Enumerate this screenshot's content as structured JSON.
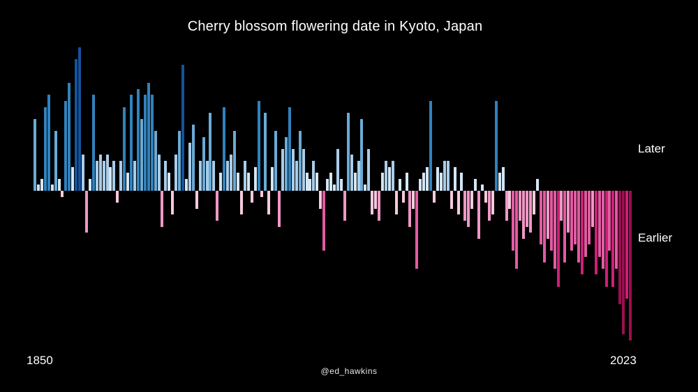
{
  "chart_data": {
    "type": "bar",
    "title": "Cherry blossom flowering date in Kyoto, Japan",
    "xlabel": "",
    "ylabel": "",
    "unit": "days relative to long-term average (positive = later, negative = earlier), estimated from bar heights",
    "x_start_label": "1850",
    "x_end_label": "2023",
    "annotations": {
      "later": "Later",
      "earlier": "Earlier"
    },
    "credit": "@ed_hawkins",
    "background": "#000000",
    "legend": "off",
    "grid": "off",
    "ylim": [
      -26,
      26
    ],
    "palette": {
      "later": [
        "#d4e6f4",
        "#a9cde9",
        "#6aabd6",
        "#3182bd",
        "#15539b"
      ],
      "earlier": [
        "#f6c9de",
        "#ef97c5",
        "#e25ba2",
        "#cf1f78",
        "#9c0e50"
      ]
    },
    "thresholds": [
      4,
      8,
      13,
      18
    ],
    "years": [
      1850,
      1851,
      1852,
      1853,
      1854,
      1855,
      1856,
      1857,
      1858,
      1859,
      1860,
      1861,
      1862,
      1863,
      1864,
      1865,
      1866,
      1867,
      1868,
      1869,
      1870,
      1871,
      1872,
      1873,
      1874,
      1875,
      1876,
      1877,
      1878,
      1879,
      1880,
      1881,
      1882,
      1883,
      1884,
      1885,
      1886,
      1887,
      1888,
      1889,
      1890,
      1891,
      1892,
      1893,
      1894,
      1895,
      1896,
      1897,
      1898,
      1899,
      1900,
      1901,
      1902,
      1903,
      1904,
      1905,
      1906,
      1907,
      1908,
      1909,
      1910,
      1911,
      1912,
      1913,
      1914,
      1915,
      1916,
      1917,
      1918,
      1919,
      1920,
      1921,
      1922,
      1923,
      1924,
      1925,
      1926,
      1927,
      1928,
      1929,
      1930,
      1931,
      1932,
      1933,
      1934,
      1935,
      1936,
      1937,
      1938,
      1939,
      1940,
      1941,
      1942,
      1943,
      1944,
      1945,
      1946,
      1947,
      1948,
      1949,
      1950,
      1951,
      1952,
      1953,
      1954,
      1955,
      1956,
      1957,
      1958,
      1959,
      1960,
      1961,
      1962,
      1963,
      1964,
      1965,
      1966,
      1967,
      1968,
      1969,
      1970,
      1971,
      1972,
      1973,
      1974,
      1975,
      1976,
      1977,
      1978,
      1979,
      1980,
      1981,
      1982,
      1983,
      1984,
      1985,
      1986,
      1987,
      1988,
      1989,
      1990,
      1991,
      1992,
      1993,
      1994,
      1995,
      1996,
      1997,
      1998,
      1999,
      2000,
      2001,
      2002,
      2003,
      2004,
      2005,
      2006,
      2007,
      2008,
      2009,
      2010,
      2011,
      2012,
      2013,
      2014,
      2015,
      2016,
      2017,
      2018,
      2019,
      2020,
      2021,
      2022,
      2023
    ],
    "values": [
      12,
      1,
      2,
      14,
      16,
      1,
      10,
      2,
      -1,
      15,
      18,
      4,
      22,
      24,
      6,
      -7,
      2,
      16,
      5,
      6,
      5,
      6,
      4,
      5,
      -2,
      5,
      14,
      3,
      16,
      5,
      17,
      12,
      16,
      18,
      16,
      10,
      6,
      -6,
      5,
      3,
      -4,
      6,
      10,
      21,
      2,
      8,
      11,
      -3,
      5,
      9,
      5,
      13,
      5,
      -5,
      3,
      14,
      5,
      6,
      10,
      3,
      -4,
      5,
      3,
      -2,
      4,
      15,
      -1,
      13,
      -4,
      4,
      10,
      -6,
      7,
      9,
      14,
      7,
      5,
      10,
      7,
      3,
      2,
      5,
      3,
      -3,
      -10,
      2,
      3,
      1,
      7,
      2,
      -5,
      13,
      6,
      3,
      5,
      12,
      1,
      7,
      -4,
      -3,
      -5,
      3,
      5,
      4,
      5,
      -4,
      2,
      -2,
      3,
      -6,
      -3,
      -13,
      2,
      3,
      4,
      15,
      -2,
      4,
      3,
      5,
      5,
      -3,
      4,
      -4,
      3,
      -5,
      -6,
      -3,
      2,
      -8,
      1,
      -2,
      -5,
      -4,
      15,
      3,
      4,
      -5,
      -3,
      -10,
      -13,
      -5,
      -8,
      -6,
      -7,
      -4,
      2,
      -9,
      -12,
      -8,
      -10,
      -13,
      -16,
      -5,
      -12,
      -7,
      -10,
      -9,
      -12,
      -14,
      -11,
      -9,
      -6,
      -14,
      -11,
      -13,
      -16,
      -10,
      -16,
      -13,
      -19,
      -24,
      -18,
      -25
    ]
  }
}
